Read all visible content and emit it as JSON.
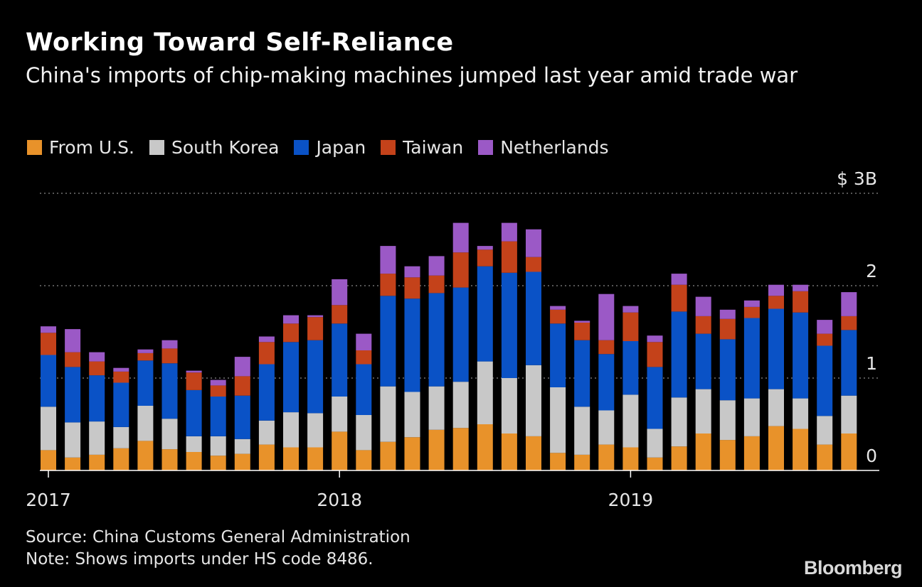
{
  "chart_data": {
    "type": "bar",
    "stacked": true,
    "title": "Working Toward Self-Reliance",
    "subtitle": "China's imports of chip-making machines jumped last year amid trade war",
    "units": "$B",
    "ylim": [
      0,
      3
    ],
    "yticks": [
      {
        "value": 0,
        "label": "0"
      },
      {
        "value": 1,
        "label": "1"
      },
      {
        "value": 2,
        "label": "2"
      },
      {
        "value": 3,
        "label": "$ 3B"
      }
    ],
    "grid": true,
    "xticks": [
      {
        "index": 0,
        "label": "2017"
      },
      {
        "index": 12,
        "label": "2018"
      },
      {
        "index": 24,
        "label": "2019"
      }
    ],
    "categories": [
      "Jan 2017",
      "Feb 2017",
      "Mar 2017",
      "Apr 2017",
      "May 2017",
      "Jun 2017",
      "Jul 2017",
      "Aug 2017",
      "Sep 2017",
      "Oct 2017",
      "Nov 2017",
      "Dec 2017",
      "Jan 2018",
      "Feb 2018",
      "Mar 2018",
      "Apr 2018",
      "May 2018",
      "Jun 2018",
      "Jul 2018",
      "Aug 2018",
      "Sep 2018",
      "Oct 2018",
      "Nov 2018",
      "Dec 2018",
      "Jan 2019",
      "Feb 2019",
      "Mar 2019",
      "Apr 2019",
      "May 2019",
      "Jun 2019",
      "Jul 2019",
      "Aug 2019",
      "Sep 2019",
      "Oct 2019"
    ],
    "series": [
      {
        "name": "From U.S.",
        "color": "#e8922a",
        "values": [
          0.22,
          0.14,
          0.17,
          0.24,
          0.32,
          0.23,
          0.2,
          0.16,
          0.18,
          0.28,
          0.25,
          0.25,
          0.42,
          0.22,
          0.31,
          0.36,
          0.44,
          0.46,
          0.5,
          0.4,
          0.37,
          0.19,
          0.17,
          0.28,
          0.25,
          0.14,
          0.26,
          0.4,
          0.33,
          0.37,
          0.48,
          0.45,
          0.28,
          0.4
        ]
      },
      {
        "name": "South Korea",
        "color": "#c8c8c8",
        "values": [
          0.47,
          0.38,
          0.36,
          0.23,
          0.38,
          0.33,
          0.17,
          0.21,
          0.16,
          0.26,
          0.38,
          0.37,
          0.38,
          0.38,
          0.6,
          0.49,
          0.47,
          0.5,
          0.68,
          0.6,
          0.77,
          0.71,
          0.52,
          0.37,
          0.57,
          0.31,
          0.53,
          0.48,
          0.43,
          0.41,
          0.4,
          0.33,
          0.31,
          0.41
        ]
      },
      {
        "name": "Japan",
        "color": "#0a52c6",
        "values": [
          0.56,
          0.6,
          0.5,
          0.48,
          0.49,
          0.6,
          0.5,
          0.43,
          0.47,
          0.61,
          0.76,
          0.79,
          0.79,
          0.55,
          0.98,
          1.01,
          1.01,
          1.02,
          1.03,
          1.14,
          1.01,
          0.69,
          0.72,
          0.61,
          0.58,
          0.67,
          0.93,
          0.6,
          0.66,
          0.87,
          0.87,
          0.93,
          0.76,
          0.71
        ]
      },
      {
        "name": "Taiwan",
        "color": "#c4421a",
        "values": [
          0.24,
          0.16,
          0.15,
          0.12,
          0.08,
          0.16,
          0.19,
          0.12,
          0.21,
          0.24,
          0.2,
          0.25,
          0.2,
          0.15,
          0.24,
          0.23,
          0.19,
          0.38,
          0.18,
          0.34,
          0.16,
          0.15,
          0.19,
          0.15,
          0.31,
          0.27,
          0.29,
          0.19,
          0.22,
          0.12,
          0.14,
          0.23,
          0.13,
          0.15
        ]
      },
      {
        "name": "Netherlands",
        "color": "#9b59c6",
        "values": [
          0.07,
          0.25,
          0.1,
          0.04,
          0.04,
          0.09,
          0.02,
          0.06,
          0.21,
          0.06,
          0.09,
          0.02,
          0.28,
          0.18,
          0.3,
          0.12,
          0.21,
          0.32,
          0.04,
          0.2,
          0.3,
          0.04,
          0.02,
          0.5,
          0.07,
          0.07,
          0.12,
          0.21,
          0.1,
          0.07,
          0.12,
          0.07,
          0.15,
          0.26
        ]
      }
    ]
  },
  "footer": {
    "source": "Source: China Customs General Administration",
    "note": "Note: Shows imports under HS code 8486.",
    "brand": "Bloomberg"
  }
}
